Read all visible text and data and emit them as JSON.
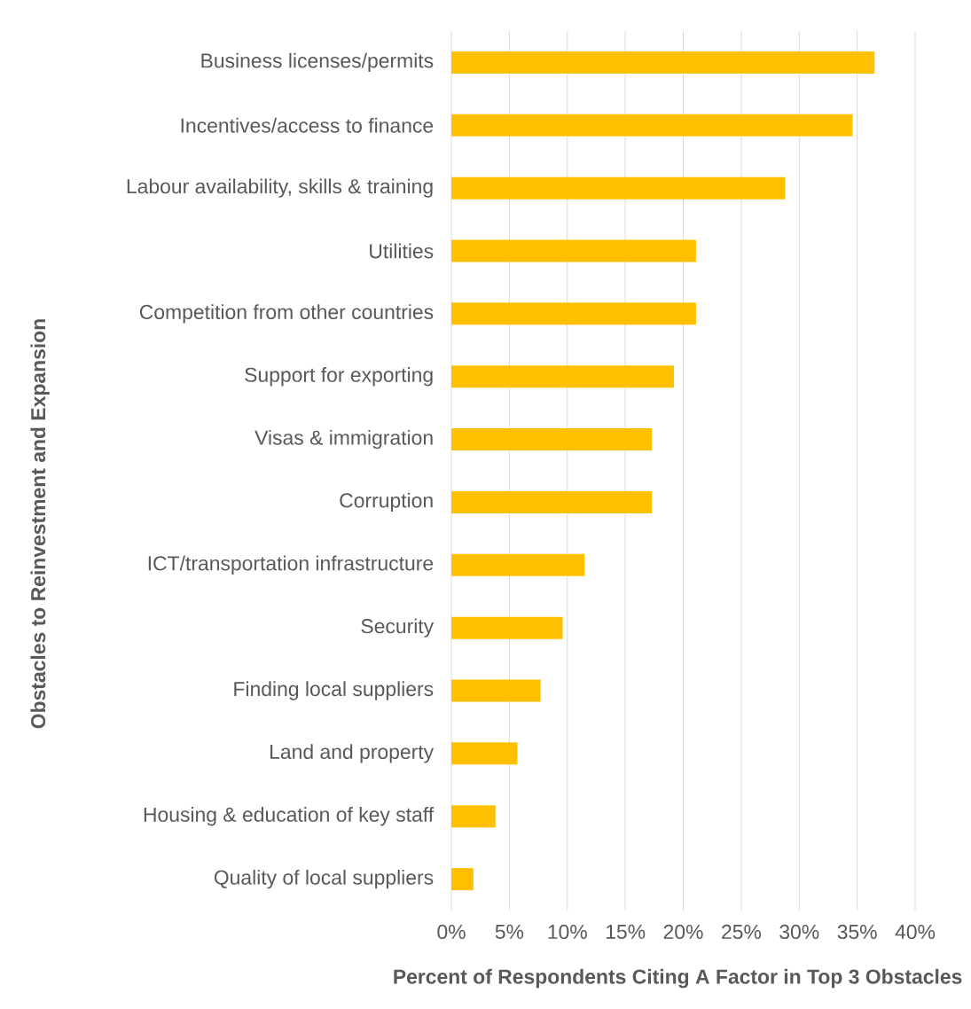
{
  "chart_data": {
    "type": "bar",
    "orientation": "horizontal",
    "xlabel": "Percent of Respondents Citing A Factor in Top 3 Obstacles",
    "ylabel": "Obstacles to Reinvestment and Expansion",
    "categories": [
      "Business licenses/permits",
      "Incentives/access to finance",
      "Labour availability, skills & training",
      "Utilities",
      "Competition from other countries",
      "Support for exporting",
      "Visas & immigration",
      "Corruption",
      "ICT/transportation infrastructure",
      "Security",
      "Finding local suppliers",
      "Land and property",
      "Housing & education of key staff",
      "Quality of local suppliers"
    ],
    "values": [
      36.5,
      34.6,
      28.8,
      21.1,
      21.1,
      19.2,
      17.3,
      17.3,
      11.5,
      9.6,
      7.7,
      5.7,
      3.8,
      1.9
    ],
    "color": "#ffc000",
    "xlim": [
      0,
      40
    ],
    "xticks": [
      {
        "value": 0,
        "label": "0%"
      },
      {
        "value": 5,
        "label": "5%"
      },
      {
        "value": 10,
        "label": "10%"
      },
      {
        "value": 15,
        "label": "15%"
      },
      {
        "value": 20,
        "label": "20%"
      },
      {
        "value": 25,
        "label": "25%"
      },
      {
        "value": 30,
        "label": "30%"
      },
      {
        "value": 35,
        "label": "35%"
      },
      {
        "value": 40,
        "label": "40%"
      }
    ],
    "grid": "x"
  }
}
